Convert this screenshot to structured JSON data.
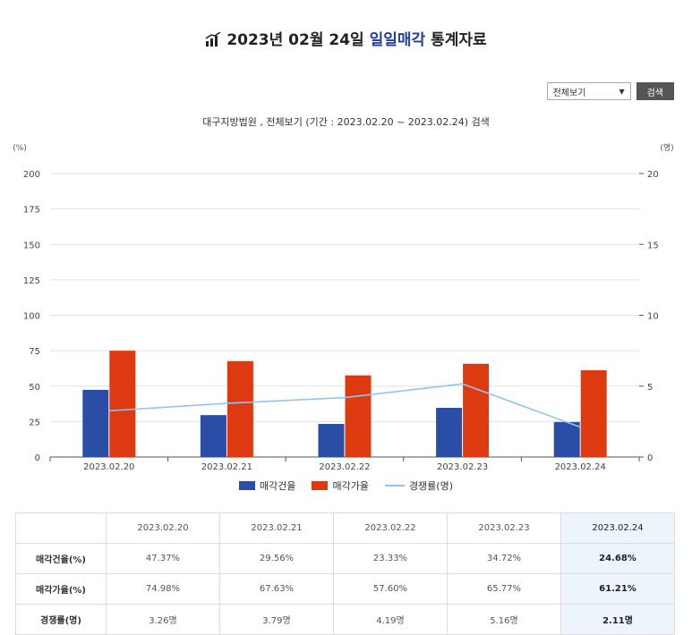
{
  "header": {
    "title_prefix": "2023년 02월 24일",
    "title_highlight": "일일매각",
    "title_suffix": "통계자료"
  },
  "controls": {
    "select_value": "전체보기",
    "search_label": "검색"
  },
  "subtitle": "대구지방법원 , 전체보기 (기간 : 2023.02.20 ~ 2023.02.24) 검색",
  "colors": {
    "bar1": "#2a4ea6",
    "bar2": "#de3a12",
    "line": "#8ec6ee",
    "highlight_bg": "#eef4fb"
  },
  "chart_data": {
    "type": "bar",
    "categories": [
      "2023.02.20",
      "2023.02.21",
      "2023.02.22",
      "2023.02.23",
      "2023.02.24"
    ],
    "series": [
      {
        "name": "매각건율",
        "axis": "left",
        "values": [
          47.37,
          29.56,
          23.33,
          34.72,
          24.68
        ]
      },
      {
        "name": "매각가율",
        "axis": "left",
        "values": [
          74.98,
          67.63,
          57.6,
          65.77,
          61.21
        ]
      },
      {
        "name": "경쟁률(명)",
        "axis": "right",
        "type": "line",
        "values": [
          3.26,
          3.79,
          4.19,
          5.16,
          2.11
        ]
      }
    ],
    "ylabel_left": "(%)",
    "ylabel_right": "(명)",
    "ylim_left": [
      0,
      200
    ],
    "ylim_right": [
      0,
      20
    ],
    "yticks_left": [
      "0",
      "25",
      "50",
      "75",
      "100",
      "125",
      "150",
      "175",
      "200"
    ],
    "yticks_right": [
      "0",
      "5",
      "10",
      "15",
      "20"
    ],
    "grid": true,
    "legend": "bottom"
  },
  "table": {
    "headers": [
      "",
      "2023.02.20",
      "2023.02.21",
      "2023.02.22",
      "2023.02.23",
      "2023.02.24"
    ],
    "rows": [
      {
        "label": "매각건율(%)",
        "cells": [
          "47.37%",
          "29.56%",
          "23.33%",
          "34.72%",
          "24.68%"
        ]
      },
      {
        "label": "매각가율(%)",
        "cells": [
          "74.98%",
          "67.63%",
          "57.60%",
          "65.77%",
          "61.21%"
        ]
      },
      {
        "label": "경쟁률(명)",
        "cells": [
          "3.26명",
          "3.79명",
          "4.19명",
          "5.16명",
          "2.11명"
        ]
      }
    ]
  }
}
